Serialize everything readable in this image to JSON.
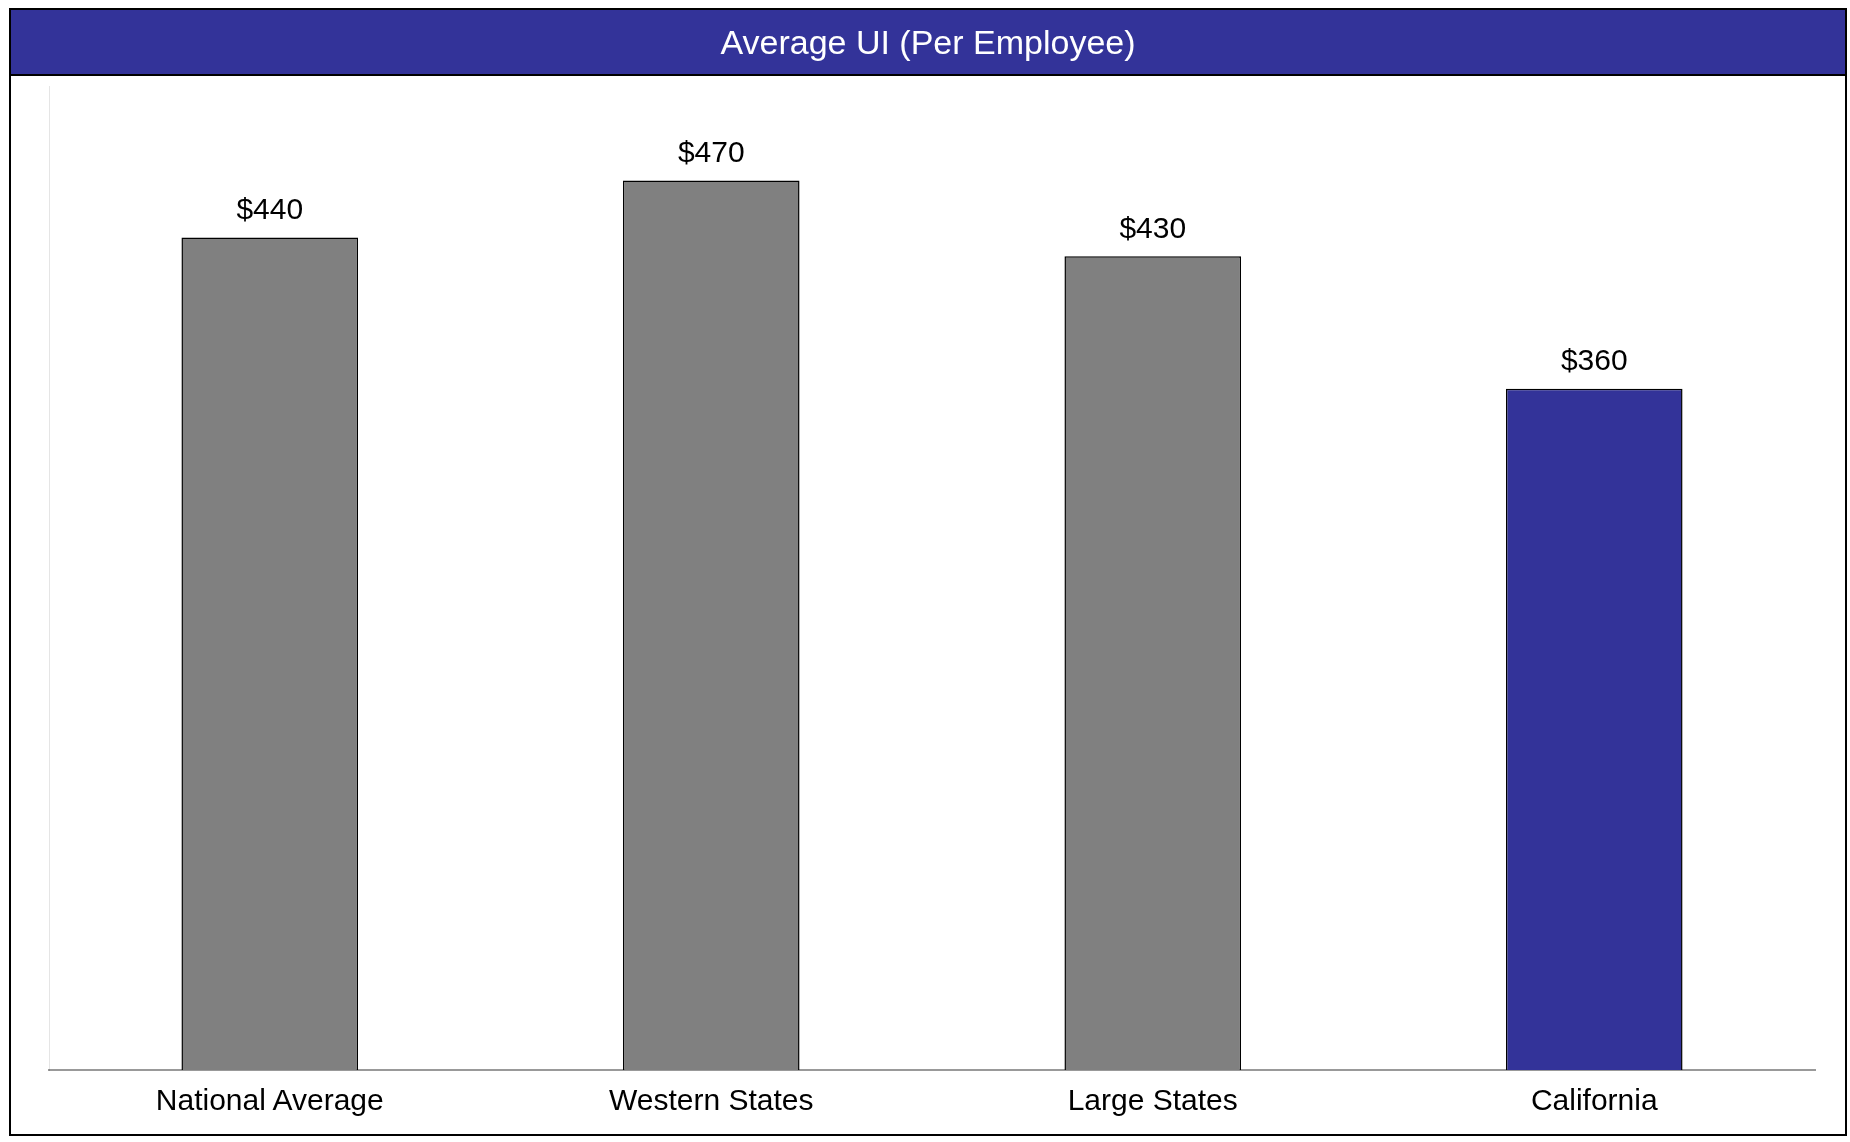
{
  "chart_data": {
    "type": "bar",
    "title": "Average UI (Per Employee)",
    "categories": [
      "National Average",
      "Western States",
      "Large States",
      "California"
    ],
    "values": [
      440,
      470,
      430,
      360
    ],
    "colors": [
      "#808080",
      "#808080",
      "#808080",
      "#333399"
    ],
    "value_labels": [
      "$440",
      "$470",
      "$430",
      "$360"
    ],
    "ylim": [
      0,
      520
    ],
    "grid": false,
    "legend": false
  }
}
